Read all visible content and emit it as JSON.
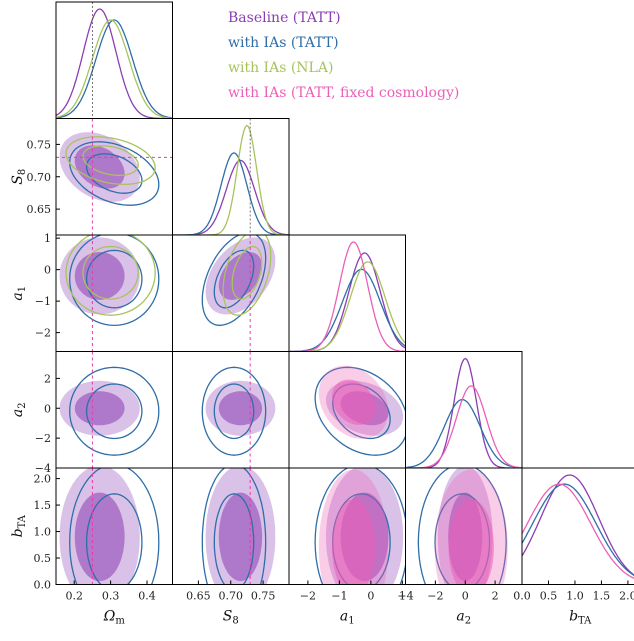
{
  "chart_data": {
    "type": "corner",
    "parameters": [
      {
        "key": "Om",
        "label": "Ω",
        "sub": "m",
        "range": [
          0.15,
          0.47
        ],
        "ticks": [
          0.2,
          0.3,
          0.4
        ],
        "ticklabels": [
          "0.2",
          "0.3",
          "0.4"
        ]
      },
      {
        "key": "S8",
        "label": "S",
        "sub": "8",
        "range": [
          0.61,
          0.79
        ],
        "ticks": [
          0.65,
          0.7,
          0.75
        ],
        "ticklabels": [
          "0.65",
          "0.70",
          "0.75"
        ]
      },
      {
        "key": "a1",
        "label": "a",
        "sub": "1",
        "range": [
          -2.6,
          1.1
        ],
        "ticks": [
          -2,
          -1,
          0,
          1
        ],
        "ticklabels": [
          "−2",
          "−1",
          "0",
          "1"
        ]
      },
      {
        "key": "a2",
        "label": "a",
        "sub": "2",
        "range": [
          -4,
          3.8
        ],
        "ticks": [
          -4,
          -2,
          0,
          2
        ],
        "ticklabels": [
          "−4",
          "−2",
          "0",
          "2"
        ]
      },
      {
        "key": "bTA",
        "label": "b",
        "sub": "TA",
        "range": [
          0,
          2.2
        ],
        "ticks": [
          0.0,
          0.5,
          1.0,
          1.5,
          2.0
        ],
        "ticklabels": [
          "0.0",
          "0.5",
          "1.0",
          "1.5",
          "2.0"
        ]
      }
    ],
    "fiducial": {
      "Om": 0.25,
      "S8": 0.73
    },
    "series": [
      {
        "name": "Baseline (TATT)",
        "color": "#8b3db5",
        "style": "filled",
        "means": {
          "Om": 0.27,
          "S8": 0.715,
          "a1": -0.2,
          "a2": 0.0,
          "bTA": 0.9
        },
        "sigmas": {
          "Om": 0.045,
          "S8": 0.022,
          "a1": 0.5,
          "a2": 0.75,
          "bTA": 0.55
        },
        "corr": {
          "Om-S8": -0.3,
          "a1-a2": -0.3,
          "S8-a1": 0.4
        }
      },
      {
        "name": "with IAs (TATT)",
        "color": "#2f6ea8",
        "style": "line",
        "means": {
          "Om": 0.31,
          "S8": 0.705,
          "a1": -0.3,
          "a2": -0.2,
          "bTA": 0.8
        },
        "sigmas": {
          "Om": 0.05,
          "S8": 0.02,
          "a1": 0.6,
          "a2": 1.2,
          "bTA": 0.6
        },
        "corr": {
          "Om-S8": -0.35,
          "a1-a2": -0.3,
          "S8-a1": 0.45
        }
      },
      {
        "name": "with IAs (NLA)",
        "color": "#a8c35c",
        "style": "line",
        "means": {
          "Om": 0.3,
          "S8": 0.725,
          "a1": -0.1
        },
        "sigmas": {
          "Om": 0.05,
          "S8": 0.015,
          "a1": 0.55
        },
        "corr": {
          "Om-S8": -0.3,
          "S8-a1": 0.4
        }
      },
      {
        "name": "with IAs (TATT, fixed cosmology)",
        "color": "#ec5fb8",
        "style": "filled",
        "means": {
          "a1": -0.55,
          "a2": 0.4,
          "bTA": 0.7
        },
        "sigmas": {
          "a1": 0.45,
          "a2": 1.0,
          "bTA": 0.6
        },
        "corr": {
          "a1-a2": -0.25
        }
      }
    ],
    "xlabel": "",
    "ylabel": ""
  }
}
